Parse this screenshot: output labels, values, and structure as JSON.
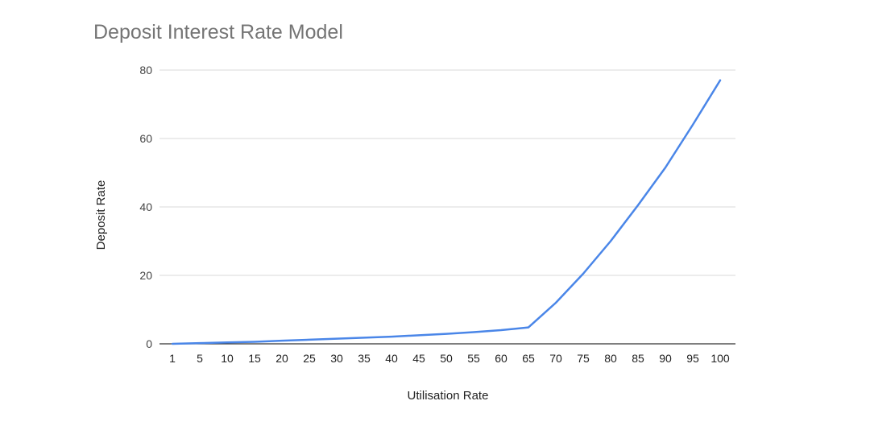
{
  "chart_data": {
    "type": "line",
    "title": "Deposit Interest Rate Model",
    "xlabel": "Utilisation Rate",
    "ylabel": "Deposit Rate",
    "categories": [
      "1",
      "5",
      "10",
      "15",
      "20",
      "25",
      "30",
      "35",
      "40",
      "45",
      "50",
      "55",
      "60",
      "65",
      "70",
      "75",
      "80",
      "85",
      "90",
      "95",
      "100"
    ],
    "ylim": [
      0,
      80
    ],
    "yticks": [
      0,
      20,
      40,
      60,
      80
    ],
    "grid": true,
    "legend": "none",
    "series": [
      {
        "color": "#4a86e8",
        "values": [
          0.0,
          0.2,
          0.4,
          0.6,
          0.9,
          1.2,
          1.5,
          1.8,
          2.1,
          2.5,
          2.9,
          3.4,
          4.0,
          4.8,
          12.0,
          20.5,
          30.0,
          40.5,
          51.5,
          64.0,
          77.0
        ]
      }
    ]
  }
}
